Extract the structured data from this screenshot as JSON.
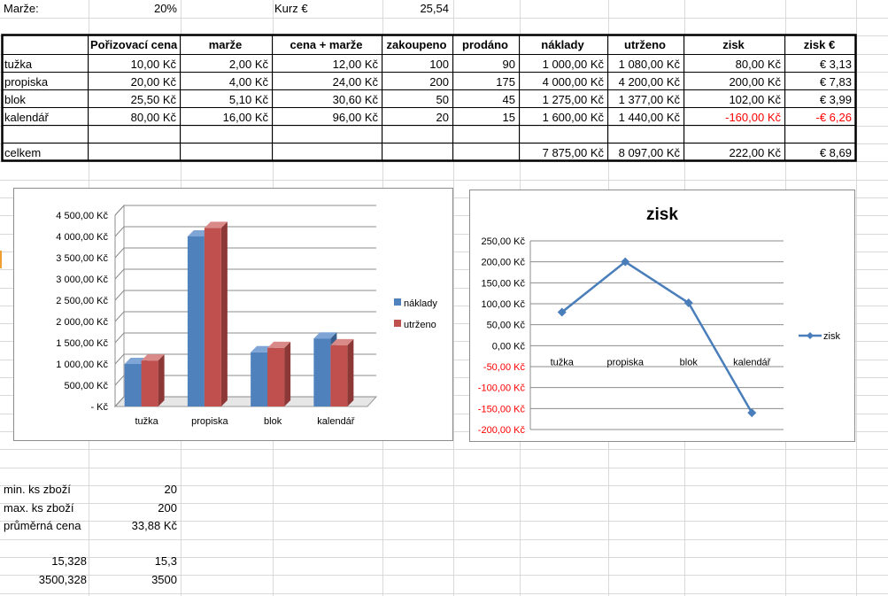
{
  "top": {
    "marze_label": "Marže:",
    "marze_value": "20%",
    "kurz_label": "Kurz €",
    "kurz_value": "25,54"
  },
  "table": {
    "headers": [
      "",
      "Pořizovací cena",
      "marže",
      "cena + marže",
      "zakoupeno",
      "prodáno",
      "náklady",
      "utrženo",
      "zisk",
      "zisk €"
    ],
    "rows": [
      [
        "tužka",
        "10,00 Kč",
        "2,00 Kč",
        "12,00 Kč",
        "100",
        "90",
        "1 000,00 Kč",
        "1 080,00 Kč",
        "80,00 Kč",
        "€ 3,13"
      ],
      [
        "propiska",
        "20,00 Kč",
        "4,00 Kč",
        "24,00 Kč",
        "200",
        "175",
        "4 000,00 Kč",
        "4 200,00 Kč",
        "200,00 Kč",
        "€ 7,83"
      ],
      [
        "blok",
        "25,50 Kč",
        "5,10 Kč",
        "30,60 Kč",
        "50",
        "45",
        "1 275,00 Kč",
        "1 377,00 Kč",
        "102,00 Kč",
        "€ 3,99"
      ],
      [
        "kalendář",
        "80,00 Kč",
        "16,00 Kč",
        "96,00 Kč",
        "20",
        "15",
        "1 600,00 Kč",
        "1 440,00 Kč",
        "-160,00 Kč",
        "-€ 6,26"
      ]
    ],
    "total": [
      "celkem",
      "",
      "",
      "",
      "",
      "",
      "7 875,00 Kč",
      "8 097,00 Kč",
      "222,00 Kč",
      "€ 8,69"
    ]
  },
  "stats": {
    "min_label": "min. ks zboží",
    "min_value": "20",
    "max_label": "max. ks zboží",
    "max_value": "200",
    "avg_label": "průměrná cena",
    "avg_value": "33,88 Kč",
    "r1a": "15,328",
    "r1b": "15,3",
    "r2a": "3500,328",
    "r2b": "3500"
  },
  "colors": {
    "naklady": "#4f81bd",
    "utrzeno": "#c0504d",
    "zisk_line": "#4a7ebb",
    "negative": "#ff0000"
  },
  "chart_data": [
    {
      "type": "bar",
      "title": "",
      "categories": [
        "tužka",
        "propiska",
        "blok",
        "kalendář"
      ],
      "series": [
        {
          "name": "náklady",
          "values": [
            1000,
            4000,
            1275,
            1600
          ]
        },
        {
          "name": "utrženo",
          "values": [
            1080,
            4200,
            1377,
            1440
          ]
        }
      ],
      "ylim": [
        0,
        4500
      ],
      "ytick_labels": [
        "-  Kč",
        "500,00 Kč",
        "1 000,00 Kč",
        "1 500,00 Kč",
        "2 000,00 Kč",
        "2 500,00 Kč",
        "3 000,00 Kč",
        "3 500,00 Kč",
        "4 000,00 Kč",
        "4 500,00 Kč"
      ],
      "legend": "right",
      "grid": true,
      "style": "3d-clustered-column"
    },
    {
      "type": "line",
      "title": "zisk",
      "categories": [
        "tužka",
        "propiska",
        "blok",
        "kalendář"
      ],
      "series": [
        {
          "name": "zisk",
          "values": [
            80,
            200,
            102,
            -160
          ]
        }
      ],
      "ylim": [
        -200,
        250
      ],
      "ytick_labels": [
        "-200,00 Kč",
        "-150,00 Kč",
        "-100,00 Kč",
        "-50,00 Kč",
        "0,00 Kč",
        "50,00 Kč",
        "100,00 Kč",
        "150,00 Kč",
        "200,00 Kč",
        "250,00 Kč"
      ],
      "legend": "right",
      "grid": true
    }
  ]
}
